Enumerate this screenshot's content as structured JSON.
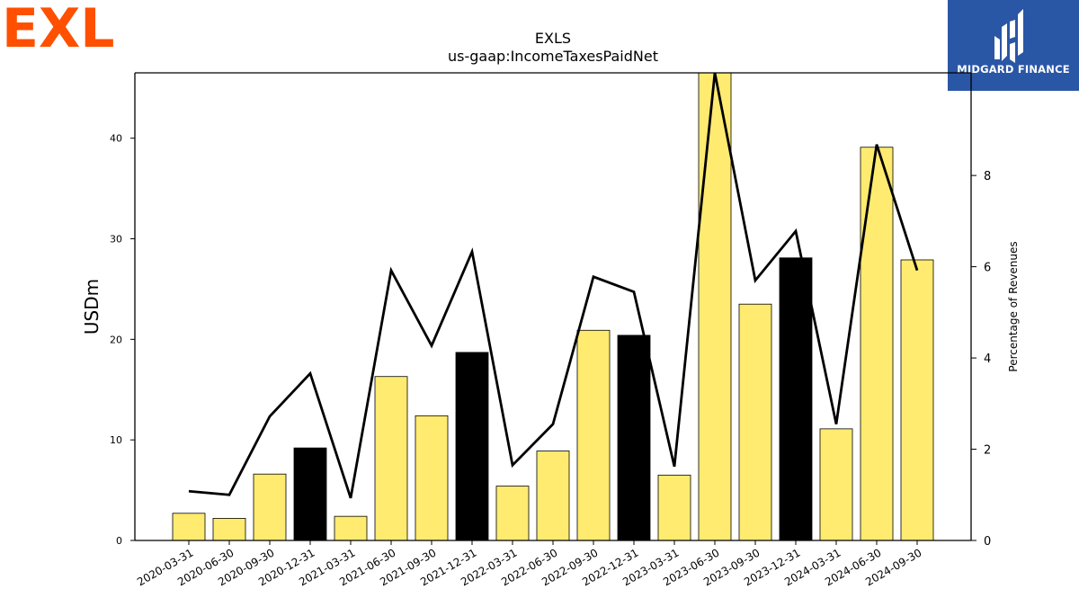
{
  "brand": {
    "company_logo_text": "EXL",
    "company_logo_color": "#fe5000",
    "publisher_name": "MIDGARD FINANCE",
    "publisher_bg_color": "#2a56a6"
  },
  "chart_data": {
    "type": "bar",
    "title": "EXLS",
    "subtitle": "us-gaap:IncomeTaxesPaidNet",
    "ylabel": "USDm",
    "y2label": "Percentage of Revenues",
    "ylim": [
      0,
      46.5
    ],
    "y2lim": [
      0,
      10.25
    ],
    "yticks": [
      0,
      10,
      20,
      30,
      40
    ],
    "y2ticks": [
      0,
      2,
      4,
      6,
      8
    ],
    "categories": [
      "2020-03-31",
      "2020-06-30",
      "2020-09-30",
      "2020-12-31",
      "2021-03-31",
      "2021-06-30",
      "2021-09-30",
      "2021-12-31",
      "2022-03-31",
      "2022-06-30",
      "2022-09-30",
      "2022-12-31",
      "2023-03-31",
      "2023-06-30",
      "2023-09-30",
      "2023-12-31",
      "2024-03-31",
      "2024-06-30",
      "2024-09-30"
    ],
    "series": [
      {
        "type": "bar",
        "axis": "left",
        "values": [
          2.7,
          2.2,
          6.6,
          9.2,
          2.4,
          16.3,
          12.4,
          18.7,
          5.4,
          8.9,
          20.9,
          20.4,
          6.5,
          46.5,
          23.5,
          28.1,
          11.1,
          39.1,
          27.9
        ],
        "highlight": [
          false,
          false,
          false,
          true,
          false,
          false,
          false,
          true,
          false,
          false,
          false,
          true,
          false,
          false,
          false,
          true,
          false,
          false,
          false
        ],
        "color": "#ffeb70",
        "highlight_color": "#000000"
      },
      {
        "type": "line",
        "axis": "right",
        "values": [
          1.08,
          1.0,
          2.72,
          3.66,
          0.93,
          5.92,
          4.27,
          6.33,
          1.65,
          2.55,
          5.78,
          5.45,
          1.62,
          10.25,
          5.7,
          6.78,
          2.55,
          8.68,
          5.92
        ],
        "color": "#000000"
      }
    ],
    "grid": false,
    "legend": "none"
  }
}
